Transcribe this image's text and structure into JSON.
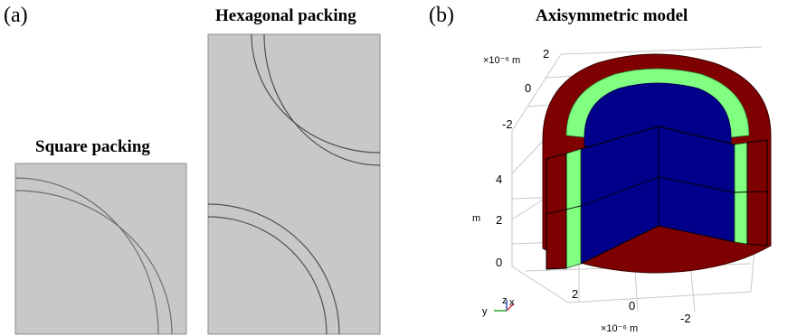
{
  "panel_a": {
    "label": "(a)",
    "square_title": "Square packing",
    "hexagonal_title": "Hexagonal packing"
  },
  "panel_b": {
    "label": "(b)",
    "title": "Axisymmetric model",
    "axes": {
      "x_unit": "×10⁻⁶ m",
      "x_ticks": [
        "2",
        "0",
        "-2"
      ],
      "y_unit": "×10⁻⁶ m",
      "y_ticks": [
        "2",
        "0",
        "-2"
      ],
      "z_ticks": [
        "4",
        "2",
        "0"
      ],
      "z_label": "m",
      "triad": [
        "z",
        "x",
        "y"
      ]
    },
    "colors": {
      "outer_layer": "#7f0000",
      "interphase": "#80ff80",
      "core": "#00008b"
    }
  },
  "colors": {
    "geometry_fill": "#c8c8c8",
    "geometry_edge": "#8c8c8c",
    "interface_line": "#505050"
  }
}
